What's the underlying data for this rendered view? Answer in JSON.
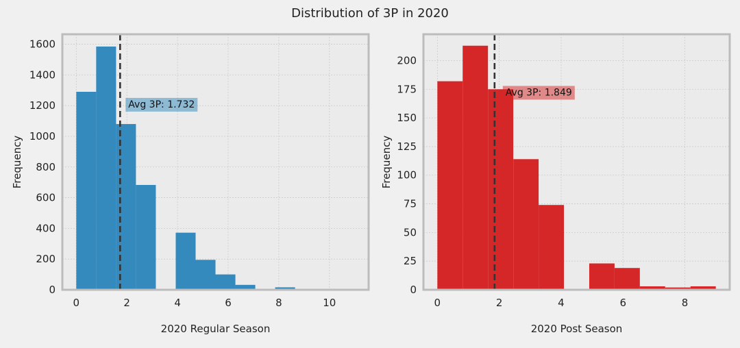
{
  "figure": {
    "title": "Distribution of 3P in 2020"
  },
  "colors": {
    "background": "#f0f0f0",
    "axes_face": "#ebebeb",
    "spine": "#bcbcbc",
    "grid": "#cbcbcb",
    "mean_line": "#333333"
  },
  "chart_data": [
    {
      "type": "bar",
      "subtype": "histogram",
      "xlabel": "2020 Regular Season",
      "ylabel": "Frequency",
      "xlim": [
        -0.55,
        11.55
      ],
      "ylim": [
        0,
        1665
      ],
      "xticks": [
        0,
        2,
        4,
        6,
        8,
        10
      ],
      "yticks": [
        0,
        200,
        400,
        600,
        800,
        1000,
        1200,
        1400,
        1600
      ],
      "bin_width": 0.786,
      "bins": [
        {
          "start": 0.0,
          "value": 1290
        },
        {
          "start": 0.786,
          "value": 1585
        },
        {
          "start": 1.571,
          "value": 1080
        },
        {
          "start": 2.357,
          "value": 683
        },
        {
          "start": 3.143,
          "value": 0
        },
        {
          "start": 3.929,
          "value": 372
        },
        {
          "start": 4.714,
          "value": 195
        },
        {
          "start": 5.5,
          "value": 100
        },
        {
          "start": 6.286,
          "value": 32
        },
        {
          "start": 7.071,
          "value": 0
        },
        {
          "start": 7.857,
          "value": 16
        },
        {
          "start": 8.643,
          "value": 2
        },
        {
          "start": 9.429,
          "value": 1
        },
        {
          "start": 10.214,
          "value": 1
        }
      ],
      "mean": 1.732,
      "annotation": "Avg 3P: 1.732",
      "color": "#348abd",
      "grid": true
    },
    {
      "type": "bar",
      "subtype": "histogram",
      "xlabel": "2020 Post Season",
      "ylabel": "Frequency",
      "xlim": [
        -0.45,
        9.45
      ],
      "ylim": [
        0,
        223
      ],
      "xticks": [
        0,
        2,
        4,
        6,
        8
      ],
      "yticks": [
        0,
        25,
        50,
        75,
        100,
        125,
        150,
        175,
        200
      ],
      "bin_width": 0.818,
      "bins": [
        {
          "start": 0.0,
          "value": 182
        },
        {
          "start": 0.818,
          "value": 213
        },
        {
          "start": 1.636,
          "value": 175
        },
        {
          "start": 2.455,
          "value": 114
        },
        {
          "start": 3.273,
          "value": 74
        },
        {
          "start": 4.091,
          "value": 0
        },
        {
          "start": 4.909,
          "value": 23
        },
        {
          "start": 5.727,
          "value": 19
        },
        {
          "start": 6.545,
          "value": 3
        },
        {
          "start": 7.364,
          "value": 2
        },
        {
          "start": 8.182,
          "value": 3
        }
      ],
      "mean": 1.849,
      "annotation": "Avg 3P: 1.849",
      "color": "#d62728",
      "grid": true
    }
  ]
}
